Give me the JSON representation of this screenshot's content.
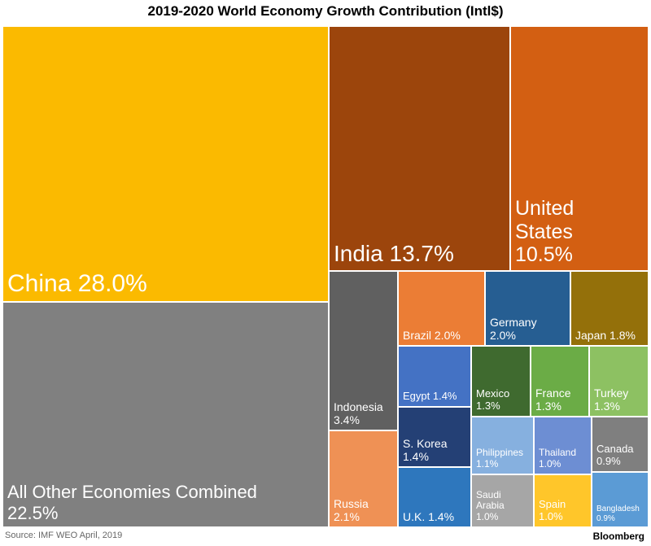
{
  "chart_data": {
    "type": "treemap",
    "title": "2019-2020 World Economy Growth Contribution (Intl$)",
    "unit": "%",
    "items": [
      {
        "name": "China",
        "label": "China 28.0%",
        "value": 28.0,
        "color": "#FBBA00"
      },
      {
        "name": "All Other Economies Combined",
        "label": "All Other Economies Combined\n22.5%",
        "value": 22.5,
        "color": "#808080"
      },
      {
        "name": "India",
        "label": "India 13.7%",
        "value": 13.7,
        "color": "#9C450C"
      },
      {
        "name": "United States",
        "label": "United\nStates\n10.5%",
        "value": 10.5,
        "color": "#D35F12"
      },
      {
        "name": "Indonesia",
        "label": "Indonesia\n3.4%",
        "value": 3.4,
        "color": "#606060"
      },
      {
        "name": "Russia",
        "label": "Russia\n2.1%",
        "value": 2.1,
        "color": "#EF9155"
      },
      {
        "name": "Brazil",
        "label": "Brazil 2.0%",
        "value": 2.0,
        "color": "#EB7D35"
      },
      {
        "name": "Germany",
        "label": "Germany\n2.0%",
        "value": 2.0,
        "color": "#265E92"
      },
      {
        "name": "Japan",
        "label": "Japan 1.8%",
        "value": 1.8,
        "color": "#94700A"
      },
      {
        "name": "Egypt",
        "label": "Egypt 1.4%",
        "value": 1.4,
        "color": "#4472C4"
      },
      {
        "name": "S. Korea",
        "label": "S. Korea\n1.4%",
        "value": 1.4,
        "color": "#244075"
      },
      {
        "name": "U.K.",
        "label": "U.K. 1.4%",
        "value": 1.4,
        "color": "#2E77BD"
      },
      {
        "name": "Mexico",
        "label": "Mexico\n1.3%",
        "value": 1.3,
        "color": "#3F6A2F"
      },
      {
        "name": "France",
        "label": "France\n1.3%",
        "value": 1.3,
        "color": "#6BAC46"
      },
      {
        "name": "Turkey",
        "label": "Turkey\n1.3%",
        "value": 1.3,
        "color": "#8DC162"
      },
      {
        "name": "Philippines",
        "label": "Philippines\n1.1%",
        "value": 1.1,
        "color": "#86B0DF"
      },
      {
        "name": "Saudi Arabia",
        "label": "Saudi\nArabia\n1.0%",
        "value": 1.0,
        "color": "#A6A6A6"
      },
      {
        "name": "Thailand",
        "label": "Thailand\n1.0%",
        "value": 1.0,
        "color": "#6D8ED3"
      },
      {
        "name": "Spain",
        "label": "Spain\n1.0%",
        "value": 1.0,
        "color": "#FFC62A"
      },
      {
        "name": "Canada",
        "label": "Canada\n0.9%",
        "value": 0.9,
        "color": "#7F7F7F"
      },
      {
        "name": "Bangladesh",
        "label": "Bangladesh\n0.9%",
        "value": 0.9,
        "color": "#5B9BD5"
      }
    ]
  },
  "footer": {
    "source": "Source: IMF WEO April, 2019",
    "brand": "Bloomberg"
  }
}
